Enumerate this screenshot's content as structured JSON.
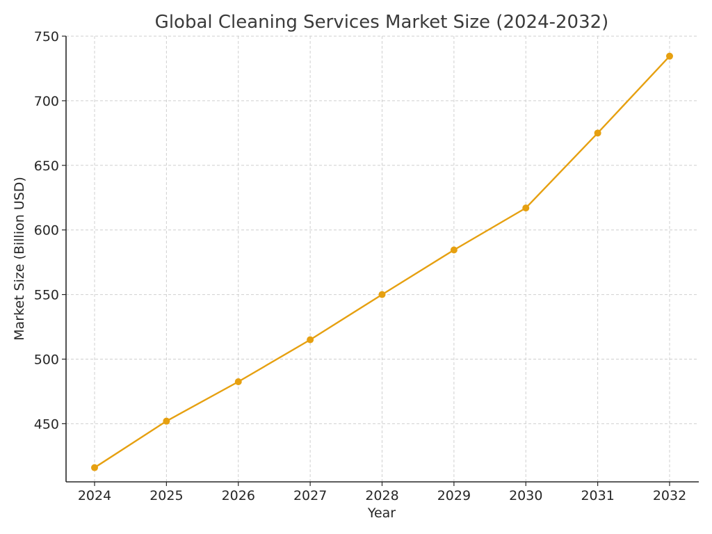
{
  "chart_data": {
    "type": "line",
    "title": "Global Cleaning Services Market Size (2024-2032)",
    "xlabel": "Year",
    "ylabel": "Market Size (Billion USD)",
    "categories": [
      "2024",
      "2025",
      "2026",
      "2027",
      "2028",
      "2029",
      "2030",
      "2031",
      "2032"
    ],
    "series": [
      {
        "values": [
          416.0,
          452.0,
          482.5,
          515.0,
          550.0,
          584.5,
          617.0,
          675.0,
          734.5
        ]
      }
    ],
    "yticks": [
      "450",
      "500",
      "550",
      "600",
      "650",
      "700",
      "750"
    ],
    "ylim": [
      405,
      750
    ],
    "grid": true,
    "colors": {
      "line": "#E6A010",
      "marker": "#E6A010"
    }
  }
}
